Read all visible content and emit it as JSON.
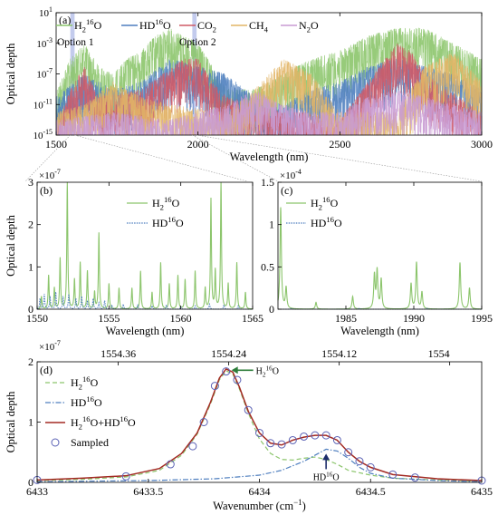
{
  "colors": {
    "h2o": "#8cc56c",
    "hdo": "#4f7fbf",
    "co2": "#cf5a67",
    "ch4": "#e2b566",
    "n2o": "#c99bd3",
    "sum": "#a32a23",
    "sampled": "#5b62b5",
    "option_band": "#b9c2ea",
    "h2o_arrow": "#2d7d3a",
    "hdo_arrow": "#1c2d6b"
  },
  "chart_data": [
    {
      "panel": "(a)",
      "type": "line",
      "xlabel": "Wavelength (nm)",
      "ylabel": "Optical depth",
      "xlim": [
        1500,
        3000
      ],
      "ylim_log10": [
        -15,
        1
      ],
      "yscale": "log",
      "xticks": [
        "1500",
        "2000",
        "2500",
        "3000"
      ],
      "yticks": [
        {
          "base": "10",
          "exp": "1"
        },
        {
          "base": "10",
          "exp": "-3"
        },
        {
          "base": "10",
          "exp": "-7"
        },
        {
          "base": "10",
          "exp": "-11"
        },
        {
          "base": "10",
          "exp": "-15"
        }
      ],
      "legend": [
        "H216O",
        "HD16O",
        "CO2",
        "CH4",
        "N2O"
      ],
      "annotations": [
        "Option 1",
        "Option 2"
      ],
      "option_bands_nm": [
        [
          1550,
          1565
        ],
        [
          1980,
          1995
        ]
      ],
      "series": [
        {
          "name": "H216O",
          "key": "h2o",
          "x": [
            1500,
            1550,
            1600,
            1650,
            1700,
            1750,
            1800,
            1850,
            1900,
            1950,
            2000,
            2100,
            2200,
            2300,
            2400,
            2500,
            2600,
            2700,
            2800,
            2900,
            3000
          ],
          "envelope_log10": [
            -9,
            -5,
            -3,
            -6,
            -7,
            -5,
            -4,
            -2,
            -1,
            -2,
            -3,
            -9,
            -9,
            -7,
            -5,
            -4,
            -2,
            -1,
            -1,
            -3,
            -5
          ]
        },
        {
          "name": "HD16O",
          "key": "hdo",
          "x": [
            1500,
            1600,
            1700,
            1800,
            1900,
            2000,
            2100,
            2200,
            2300,
            2400,
            2500,
            2600,
            2700,
            2800,
            2900,
            3000
          ],
          "envelope_log10": [
            -10,
            -7,
            -9,
            -8,
            -5,
            -6,
            -7,
            -10,
            -11,
            -9,
            -8,
            -6,
            -5,
            -6,
            -7,
            -9
          ]
        },
        {
          "name": "CO2",
          "key": "co2",
          "x": [
            1500,
            1550,
            1600,
            1650,
            1800,
            1950,
            2000,
            2050,
            2100,
            2300,
            2400,
            2500,
            2700,
            2750,
            2800,
            3000
          ],
          "envelope_log10": [
            -14,
            -9,
            -6,
            -10,
            -9,
            -5,
            -5,
            -8,
            -10,
            -12,
            -12,
            -13,
            -3,
            -4,
            -7,
            -12
          ]
        },
        {
          "name": "CH4",
          "key": "ch4",
          "x": [
            1500,
            1600,
            1700,
            1800,
            1900,
            2100,
            2200,
            2300,
            2400,
            2500,
            2700,
            2800,
            2900,
            3000
          ],
          "envelope_log10": [
            -12,
            -11,
            -8,
            -10,
            -11,
            -12,
            -9,
            -5,
            -7,
            -12,
            -12,
            -6,
            -4,
            -8
          ]
        },
        {
          "name": "N2O",
          "key": "n2o",
          "x": [
            1500,
            1700,
            1900,
            2100,
            2200,
            2300,
            2400,
            2500,
            2600,
            2700,
            2800,
            2900,
            3000
          ],
          "envelope_log10": [
            -13,
            -12,
            -13,
            -11,
            -9,
            -11,
            -12,
            -12,
            -10,
            -9,
            -10,
            -11,
            -12
          ]
        }
      ]
    },
    {
      "panel": "(b)",
      "type": "line",
      "xlabel": "Wavelength (nm)",
      "ylabel": "Optical depth",
      "multiplier": {
        "base": "×10",
        "exp": "-7"
      },
      "xlim": [
        1550,
        1565
      ],
      "ylim": [
        0,
        3
      ],
      "xticks": [
        1550,
        1555,
        1560,
        1565
      ],
      "yticks": [
        0,
        1,
        2,
        3
      ],
      "legend": [
        "H216O",
        "HD16O"
      ],
      "series": [
        {
          "name": "H216O",
          "key": "h2o",
          "peaks_x": [
            1550.3,
            1550.8,
            1551.2,
            1551.6,
            1552.1,
            1552.6,
            1553.0,
            1553.5,
            1554.0,
            1554.3,
            1555.0,
            1555.7,
            1556.6,
            1557.2,
            1558.0,
            1558.6,
            1559.2,
            1559.8,
            1560.3,
            1561.0,
            1561.7,
            1562.1,
            1562.4,
            1562.8,
            1563.3,
            1563.9,
            1564.5
          ],
          "peaks_y": [
            0.3,
            0.8,
            0.5,
            1.2,
            3.0,
            0.7,
            1.1,
            0.9,
            0.4,
            1.8,
            0.6,
            0.5,
            0.5,
            0.9,
            0.4,
            1.1,
            0.6,
            0.8,
            0.7,
            0.9,
            0.5,
            2.6,
            0.9,
            3.0,
            0.6,
            1.1,
            0.4
          ]
        },
        {
          "name": "HD16O",
          "key": "hdo",
          "peaks_x": [
            1550.2,
            1550.5,
            1550.9,
            1551.3,
            1551.8,
            1552.2,
            1552.7,
            1553.1,
            1553.5,
            1553.9,
            1554.3,
            1554.7,
            1555.2,
            1556.0,
            1557.0,
            1558.0,
            1559.0,
            1560.0,
            1561.0,
            1562.0,
            1563.0,
            1564.0
          ],
          "peaks_y": [
            0.25,
            0.35,
            0.3,
            0.4,
            0.3,
            0.35,
            0.25,
            0.3,
            0.2,
            0.25,
            0.15,
            0.2,
            0.1,
            0.12,
            0.1,
            0.08,
            0.1,
            0.06,
            0.08,
            0.12,
            0.1,
            0.08
          ]
        }
      ]
    },
    {
      "panel": "(c)",
      "type": "line",
      "xlabel": "Wavelength (nm)",
      "ylabel": "",
      "multiplier": {
        "base": "×10",
        "exp": "-4"
      },
      "xlim": [
        1980,
        1995
      ],
      "ylim": [
        0,
        1.5
      ],
      "xticks": [
        1985,
        1990,
        1995
      ],
      "yticks": [
        0,
        0.5,
        1,
        1.5
      ],
      "legend": [
        "H216O",
        "HD16O"
      ],
      "series": [
        {
          "name": "H216O",
          "key": "h2o",
          "peaks_x": [
            1980.2,
            1980.6,
            1982.8,
            1985.5,
            1987.1,
            1987.3,
            1987.6,
            1989.8,
            1990.2,
            1990.6,
            1993.4,
            1994.1
          ],
          "peaks_y": [
            1.2,
            0.25,
            0.08,
            0.15,
            0.4,
            0.45,
            0.35,
            0.3,
            0.55,
            0.2,
            0.55,
            0.25
          ]
        },
        {
          "name": "HD16O",
          "key": "hdo",
          "peaks_x": [
            1981.0,
            1986.0,
            1991.0
          ],
          "peaks_y": [
            0.01,
            0.01,
            0.01
          ]
        }
      ]
    },
    {
      "panel": "(d)",
      "type": "line",
      "xlabel": "Wavenumber (cm−1)",
      "ylabel": "Optical depth",
      "multiplier": {
        "base": "×10",
        "exp": "-7"
      },
      "xlim": [
        6433,
        6435
      ],
      "ylim": [
        0,
        2
      ],
      "xticks": [
        "6433",
        "6433.5",
        "6434",
        "6434.5",
        "6435"
      ],
      "yticks": [
        0,
        1,
        2
      ],
      "top_axis_ticks": [
        "1554.36",
        "1554.24",
        "1554.12",
        "1554"
      ],
      "top_axis_positions": [
        6433.365,
        6433.862,
        6434.359,
        6434.856
      ],
      "legend": [
        "H216O",
        "HD16O",
        "H216O+HD16O",
        "Sampled"
      ],
      "annotations": [
        "H216O",
        "HD16O"
      ],
      "series": [
        {
          "name": "H216O",
          "key": "h2o",
          "style": "dashed",
          "x": [
            6433.0,
            6433.2,
            6433.4,
            6433.55,
            6433.65,
            6433.72,
            6433.78,
            6433.82,
            6433.85,
            6433.88,
            6433.91,
            6433.95,
            6434.0,
            6434.05,
            6434.1,
            6434.15,
            6434.2,
            6434.25,
            6434.3,
            6434.35,
            6434.4,
            6434.5,
            6434.6,
            6434.8,
            6435.0
          ],
          "y": [
            0.03,
            0.05,
            0.09,
            0.2,
            0.45,
            0.8,
            1.3,
            1.7,
            1.85,
            1.8,
            1.55,
            1.15,
            0.72,
            0.48,
            0.38,
            0.37,
            0.4,
            0.42,
            0.38,
            0.3,
            0.2,
            0.12,
            0.07,
            0.04,
            0.02
          ]
        },
        {
          "name": "HD16O",
          "key": "hdo",
          "style": "dashdot",
          "x": [
            6433.0,
            6433.5,
            6433.8,
            6434.0,
            6434.1,
            6434.2,
            6434.25,
            6434.3,
            6434.35,
            6434.4,
            6434.45,
            6434.5,
            6434.6,
            6434.8,
            6435.0
          ],
          "y": [
            0.01,
            0.03,
            0.06,
            0.12,
            0.2,
            0.35,
            0.45,
            0.55,
            0.52,
            0.4,
            0.25,
            0.15,
            0.07,
            0.03,
            0.01
          ]
        },
        {
          "name": "H216O+HD16O",
          "key": "sum",
          "style": "solid",
          "x": [
            6433.0,
            6433.2,
            6433.4,
            6433.55,
            6433.65,
            6433.72,
            6433.78,
            6433.82,
            6433.85,
            6433.88,
            6433.91,
            6433.95,
            6434.0,
            6434.05,
            6434.1,
            6434.15,
            6434.2,
            6434.25,
            6434.3,
            6434.35,
            6434.4,
            6434.45,
            6434.5,
            6434.6,
            6434.8,
            6435.0
          ],
          "y": [
            0.04,
            0.07,
            0.11,
            0.23,
            0.48,
            0.82,
            1.33,
            1.73,
            1.88,
            1.83,
            1.58,
            1.18,
            0.82,
            0.65,
            0.62,
            0.7,
            0.75,
            0.78,
            0.78,
            0.7,
            0.5,
            0.35,
            0.25,
            0.13,
            0.06,
            0.03
          ]
        },
        {
          "name": "Sampled",
          "key": "sampled",
          "style": "markers",
          "x": [
            6433.0,
            6433.4,
            6433.6,
            6433.7,
            6433.75,
            6433.8,
            6433.85,
            6433.9,
            6433.95,
            6434.0,
            6434.05,
            6434.1,
            6434.15,
            6434.2,
            6434.25,
            6434.3,
            6434.35,
            6434.4,
            6434.45,
            6434.5,
            6434.6,
            6434.7,
            6435.0
          ],
          "y": [
            0.04,
            0.1,
            0.3,
            0.6,
            1.0,
            1.6,
            1.84,
            1.7,
            1.2,
            0.82,
            0.65,
            0.63,
            0.7,
            0.76,
            0.78,
            0.78,
            0.7,
            0.5,
            0.35,
            0.25,
            0.13,
            0.08,
            0.03
          ]
        }
      ]
    }
  ]
}
